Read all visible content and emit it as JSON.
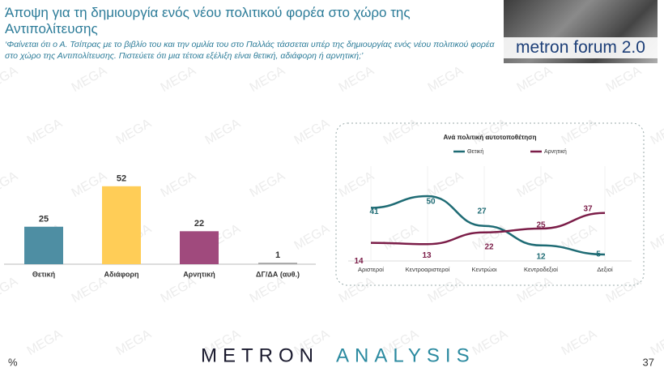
{
  "header": {
    "title": "Άποψη για τη δημιουργία ενός νέου πολιτικού φορέα στο χώρο της Αντιπολίτευσης",
    "subtitle": "‘Φαίνεται ότι ο Α. Τσίπρας με το βιβλίο του και την ομιλία του στο Παλλάς τάσσεται υπέρ της δημιουργίας ενός νέου πολιτικού φορέα στο χώρο της Αντιπολίτευσης. Πιστεύετε ότι μια τέτοια εξέλιξη είναι θετική, αδιάφορη ή αρνητική;’",
    "logo": "metron forum 2.0"
  },
  "watermark": "MEGA",
  "chart_data": [
    {
      "type": "bar",
      "categories": [
        "Θετική",
        "Αδιάφορη",
        "Αρνητική",
        "ΔΓ/ΔΑ (αυθ.)"
      ],
      "values": [
        25,
        52,
        22,
        1
      ],
      "colors": [
        "#4e8ea3",
        "#ffcd57",
        "#a04a7d",
        "#a6a6a6"
      ]
    },
    {
      "type": "line",
      "title": "Ανά πολιτική αυτοτοποθέτηση",
      "categories": [
        "Αριστεροί",
        "Κεντροαριστεροί",
        "Κεντρώοι",
        "Κεντροδεξιοί",
        "Δεξιοί"
      ],
      "series": [
        {
          "name": "Θετική",
          "color": "#1e6b74",
          "values": [
            41,
            50,
            27,
            12,
            5
          ]
        },
        {
          "name": "Αρνητική",
          "color": "#7b1d48",
          "values": [
            14,
            13,
            22,
            25,
            37
          ]
        }
      ]
    }
  ],
  "footer": {
    "brand": [
      "METRON",
      "ANALYSIS"
    ],
    "unit": "%",
    "page": "37"
  }
}
